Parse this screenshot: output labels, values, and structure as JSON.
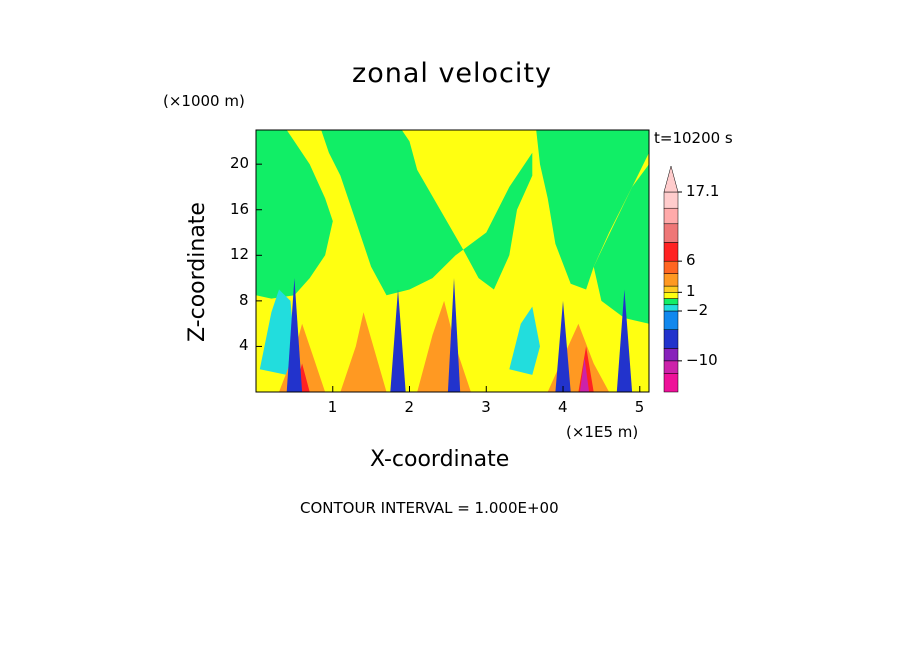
{
  "chart_data": {
    "type": "heatmap",
    "title": "zonal velocity",
    "xlabel": "X-coordinate",
    "ylabel": "Z-coordinate",
    "x_unit": "(×1E5 m)",
    "z_unit": "(×1000 m)",
    "time_label": "t=10200 s",
    "footer": "CONTOUR INTERVAL = 1.000E+00",
    "x_ticks": [
      "1",
      "2",
      "3",
      "4",
      "5"
    ],
    "x_tick_values": [
      1,
      2,
      3,
      4,
      5
    ],
    "y_ticks": [
      "4",
      "8",
      "12",
      "16",
      "20"
    ],
    "y_tick_values": [
      4,
      8,
      12,
      16,
      20
    ],
    "xlim": [
      0,
      5.12
    ],
    "ylim": [
      0,
      23
    ],
    "colorbar": {
      "labels": [
        "17.1",
        "6",
        "1",
        "−2",
        "−10"
      ],
      "label_values": [
        17.1,
        6,
        1,
        -2,
        -10
      ],
      "bands": [
        {
          "color": "#ee1199",
          "lo": -15,
          "hi": -12
        },
        {
          "color": "#cc22aa",
          "lo": -12,
          "hi": -10
        },
        {
          "color": "#8822bb",
          "lo": -10,
          "hi": -8
        },
        {
          "color": "#2233cc",
          "lo": -8,
          "hi": -5
        },
        {
          "color": "#1188ee",
          "lo": -5,
          "hi": -2
        },
        {
          "color": "#22dddd",
          "lo": -2,
          "hi": -1
        },
        {
          "color": "#11ee66",
          "lo": -1,
          "hi": 0
        },
        {
          "color": "#ffff11",
          "lo": 0,
          "hi": 1
        },
        {
          "color": "#ffcc22",
          "lo": 1,
          "hi": 2
        },
        {
          "color": "#ff9922",
          "lo": 2,
          "hi": 4
        },
        {
          "color": "#ff6622",
          "lo": 4,
          "hi": 6
        },
        {
          "color": "#ff2222",
          "lo": 6,
          "hi": 9
        },
        {
          "color": "#ee7777",
          "lo": 9,
          "hi": 12
        },
        {
          "color": "#ffaaaa",
          "lo": 12,
          "hi": 14.5
        },
        {
          "color": "#ffcccc",
          "lo": 14.5,
          "hi": 17.1
        }
      ]
    },
    "background_color": "#ffff11",
    "regions": [
      {
        "name": "upper-green-left",
        "color": "#11ee66",
        "points": [
          [
            0,
            23
          ],
          [
            0.4,
            23
          ],
          [
            0.5,
            22
          ],
          [
            0.7,
            20
          ],
          [
            0.9,
            17
          ],
          [
            1.0,
            15
          ],
          [
            0.9,
            12
          ],
          [
            0.7,
            10
          ],
          [
            0.5,
            8.5
          ],
          [
            0.2,
            8.2
          ],
          [
            0,
            8.5
          ]
        ]
      },
      {
        "name": "upper-green-mid",
        "color": "#11ee66",
        "points": [
          [
            0.85,
            23
          ],
          [
            1.9,
            23
          ],
          [
            2.0,
            22
          ],
          [
            2.1,
            19.5
          ],
          [
            2.4,
            16
          ],
          [
            2.7,
            12.5
          ],
          [
            2.9,
            10
          ],
          [
            3.1,
            9
          ],
          [
            3.3,
            12
          ],
          [
            3.4,
            16
          ],
          [
            3.6,
            19
          ],
          [
            3.6,
            21
          ],
          [
            3.3,
            18
          ],
          [
            3.0,
            14
          ],
          [
            2.6,
            12
          ],
          [
            2.3,
            10
          ],
          [
            2.0,
            9
          ],
          [
            1.7,
            8.5
          ],
          [
            1.5,
            11
          ],
          [
            1.3,
            15
          ],
          [
            1.1,
            19
          ],
          [
            0.95,
            21
          ]
        ]
      },
      {
        "name": "upper-green-right",
        "color": "#11ee66",
        "points": [
          [
            3.65,
            23
          ],
          [
            5.12,
            23
          ],
          [
            5.12,
            21
          ],
          [
            4.9,
            18
          ],
          [
            4.6,
            14
          ],
          [
            4.4,
            11
          ],
          [
            4.3,
            9
          ],
          [
            4.1,
            9.5
          ],
          [
            3.9,
            13
          ],
          [
            3.8,
            17
          ],
          [
            3.7,
            20
          ]
        ]
      },
      {
        "name": "right-green-lower",
        "color": "#11ee66",
        "points": [
          [
            4.4,
            11
          ],
          [
            4.9,
            18
          ],
          [
            5.12,
            20
          ],
          [
            5.12,
            6
          ],
          [
            4.8,
            6.5
          ],
          [
            4.5,
            8
          ]
        ]
      },
      {
        "name": "left-cyan",
        "color": "#22dddd",
        "points": [
          [
            0.05,
            2
          ],
          [
            0.2,
            7
          ],
          [
            0.3,
            9
          ],
          [
            0.45,
            8
          ],
          [
            0.5,
            4
          ],
          [
            0.4,
            1.5
          ]
        ]
      },
      {
        "name": "mid-cyan",
        "color": "#22dddd",
        "points": [
          [
            3.3,
            2
          ],
          [
            3.45,
            6
          ],
          [
            3.6,
            7.5
          ],
          [
            3.7,
            4
          ],
          [
            3.6,
            1.5
          ]
        ]
      },
      {
        "name": "bottom-orange-1",
        "color": "#ff9922",
        "points": [
          [
            0.3,
            0
          ],
          [
            0.5,
            3.5
          ],
          [
            0.6,
            6
          ],
          [
            0.75,
            3
          ],
          [
            0.9,
            0
          ]
        ]
      },
      {
        "name": "bottom-orange-2",
        "color": "#ff9922",
        "points": [
          [
            1.1,
            0
          ],
          [
            1.3,
            4
          ],
          [
            1.4,
            7
          ],
          [
            1.55,
            3.5
          ],
          [
            1.7,
            0
          ]
        ]
      },
      {
        "name": "bottom-orange-3",
        "color": "#ff9922",
        "points": [
          [
            2.1,
            0
          ],
          [
            2.3,
            5
          ],
          [
            2.45,
            8
          ],
          [
            2.6,
            4
          ],
          [
            2.8,
            0
          ]
        ]
      },
      {
        "name": "bottom-orange-4",
        "color": "#ff9922",
        "points": [
          [
            3.8,
            0
          ],
          [
            4.0,
            3
          ],
          [
            4.2,
            6
          ],
          [
            4.4,
            2.5
          ],
          [
            4.6,
            0
          ]
        ]
      },
      {
        "name": "bottom-red-1",
        "color": "#ff2222",
        "points": [
          [
            0.5,
            0
          ],
          [
            0.6,
            2.5
          ],
          [
            0.7,
            0
          ]
        ]
      },
      {
        "name": "bottom-red-2",
        "color": "#ff2222",
        "points": [
          [
            4.2,
            0
          ],
          [
            4.3,
            4
          ],
          [
            4.4,
            0
          ]
        ]
      },
      {
        "name": "blue-spike-1",
        "color": "#2233cc",
        "points": [
          [
            0.4,
            0
          ],
          [
            0.5,
            10
          ],
          [
            0.6,
            0
          ]
        ]
      },
      {
        "name": "blue-spike-2",
        "color": "#2233cc",
        "points": [
          [
            1.75,
            0
          ],
          [
            1.85,
            9
          ],
          [
            1.95,
            0
          ]
        ]
      },
      {
        "name": "blue-spike-3",
        "color": "#2233cc",
        "points": [
          [
            2.5,
            0
          ],
          [
            2.58,
            10
          ],
          [
            2.66,
            0
          ]
        ]
      },
      {
        "name": "blue-spike-4",
        "color": "#2233cc",
        "points": [
          [
            3.9,
            0
          ],
          [
            4.0,
            8
          ],
          [
            4.1,
            0
          ]
        ]
      },
      {
        "name": "blue-spike-5",
        "color": "#2233cc",
        "points": [
          [
            4.7,
            0
          ],
          [
            4.8,
            9
          ],
          [
            4.9,
            0
          ]
        ]
      },
      {
        "name": "magenta-spot",
        "color": "#cc22aa",
        "points": [
          [
            4.22,
            0
          ],
          [
            4.28,
            3
          ],
          [
            4.34,
            0
          ]
        ]
      }
    ]
  }
}
